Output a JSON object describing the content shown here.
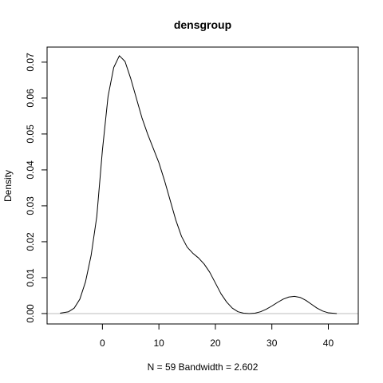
{
  "chart_data": {
    "type": "line",
    "title": "densgroup",
    "xlabel": "N = 59   Bandwidth = 2.602",
    "ylabel": "Density",
    "xlim": [
      -9.8,
      45.3
    ],
    "ylim": [
      -0.0029,
      0.0742
    ],
    "x_ticks": [
      0,
      10,
      20,
      30,
      40
    ],
    "x_tick_labels": [
      "0",
      "10",
      "20",
      "30",
      "40"
    ],
    "y_ticks": [
      0.0,
      0.01,
      0.02,
      0.03,
      0.04,
      0.05,
      0.06,
      0.07
    ],
    "y_tick_labels": [
      "0.00",
      "0.01",
      "0.02",
      "0.03",
      "0.04",
      "0.05",
      "0.06",
      "0.07"
    ],
    "baseline_color": "#bebebe",
    "line_color": "#000000",
    "series": [
      {
        "x": [
          -7.5,
          -6,
          -5,
          -4,
          -3,
          -2,
          -1,
          0,
          1,
          2,
          3,
          4,
          5,
          6,
          7,
          8,
          9,
          10,
          11,
          12,
          13,
          14,
          15,
          16,
          17,
          18,
          19,
          20,
          21,
          22,
          23,
          24,
          25,
          26,
          27,
          28,
          29,
          30,
          31,
          32,
          33,
          34,
          35,
          36,
          37,
          38,
          39,
          40,
          41.5
        ],
        "y": [
          0.0001,
          0.0005,
          0.0015,
          0.004,
          0.0088,
          0.0162,
          0.027,
          0.0455,
          0.0605,
          0.0685,
          0.0718,
          0.0702,
          0.0655,
          0.06,
          0.0545,
          0.05,
          0.046,
          0.042,
          0.037,
          0.0315,
          0.026,
          0.0215,
          0.0185,
          0.0168,
          0.0155,
          0.0138,
          0.0115,
          0.0085,
          0.0055,
          0.0032,
          0.0015,
          0.0005,
          0.0001,
          0.0,
          0.0001,
          0.0005,
          0.0012,
          0.0021,
          0.0031,
          0.004,
          0.0046,
          0.0048,
          0.0045,
          0.0037,
          0.0026,
          0.0015,
          0.0007,
          0.0002,
          0.0
        ]
      }
    ]
  }
}
